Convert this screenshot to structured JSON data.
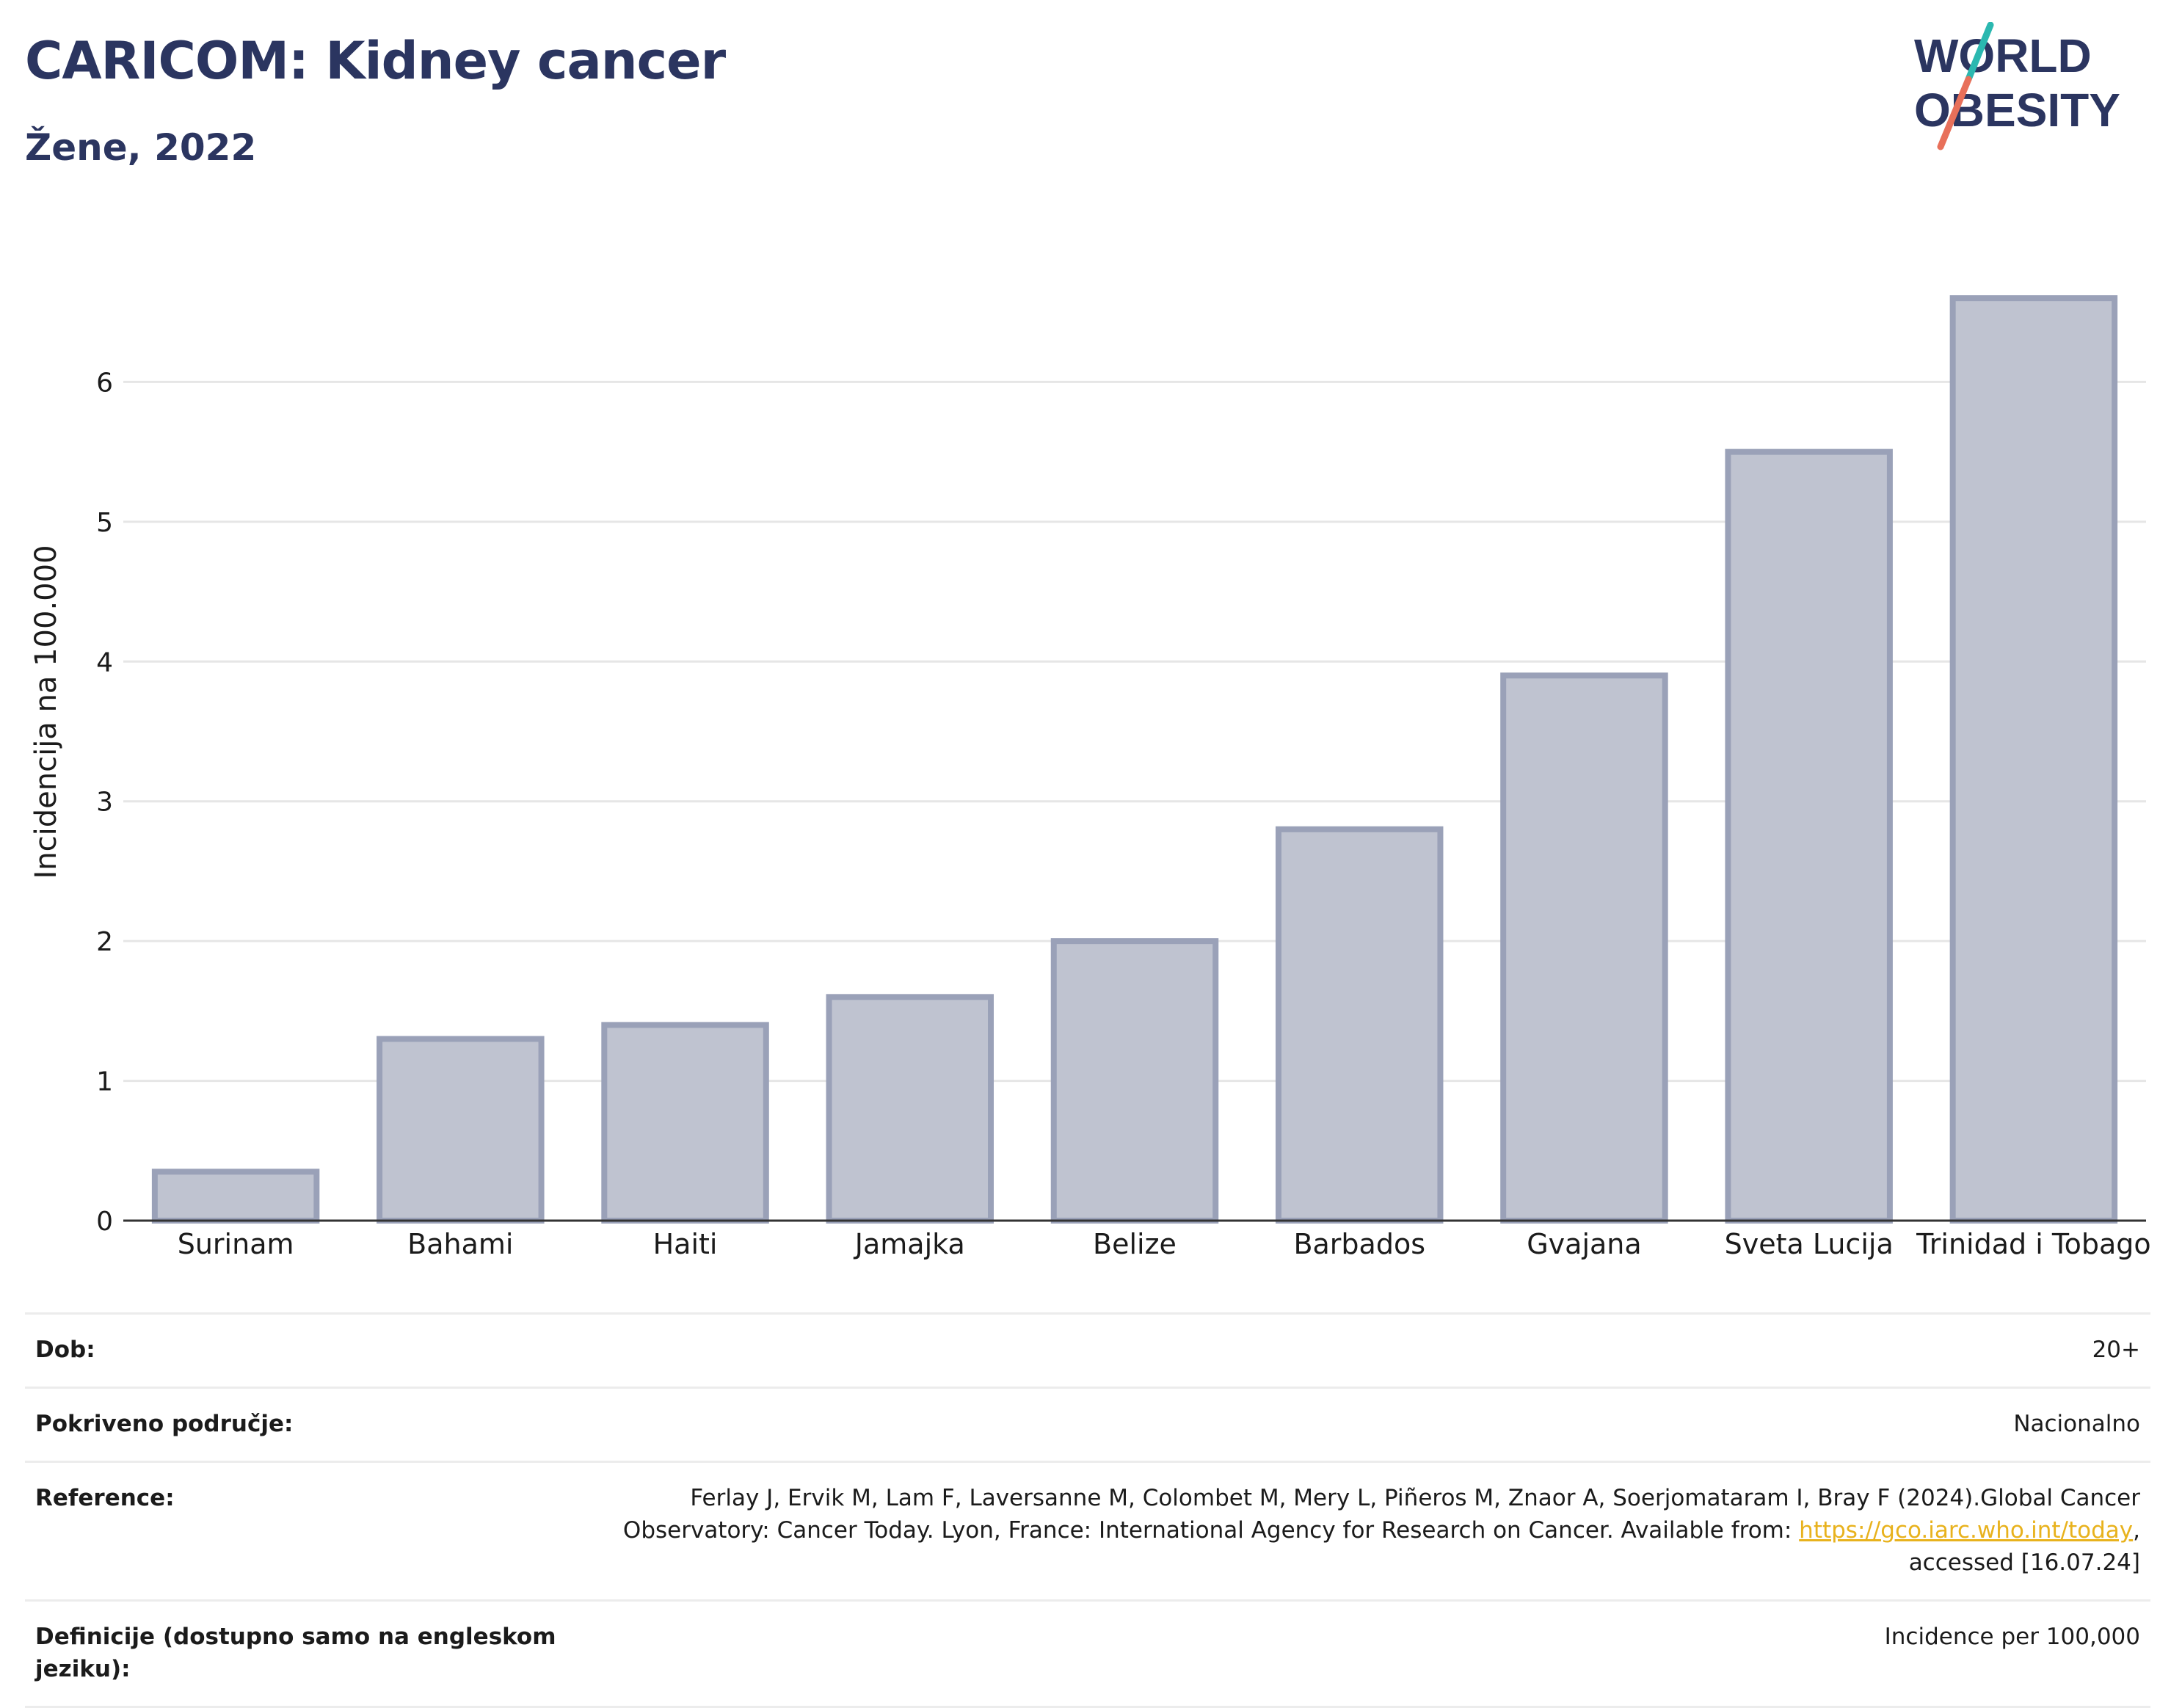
{
  "header": {
    "title": "CARICOM: Kidney cancer",
    "subtitle": "Žene, 2022"
  },
  "logo": {
    "line1": "WORLD",
    "line2": "OBESITY",
    "colors": {
      "text": "#2b3560",
      "slash_top": "#2bb8b0",
      "slash_bottom": "#e8705a"
    }
  },
  "chart_data": {
    "type": "bar",
    "title": "",
    "xlabel": "",
    "ylabel": "Incidencija na 100.000",
    "categories": [
      "Surinam",
      "Bahami",
      "Haiti",
      "Jamajka",
      "Belize",
      "Barbados",
      "Gvajana",
      "Sveta Lucija",
      "Trinidad i Tobago"
    ],
    "values": [
      0.35,
      1.3,
      1.4,
      1.6,
      2.0,
      2.8,
      3.9,
      5.5,
      6.6
    ],
    "ylim": [
      0,
      7.0
    ],
    "yticks": [
      0,
      1,
      2,
      3,
      4,
      5,
      6
    ],
    "grid": true,
    "bar_fill": "#bfc3d0",
    "bar_stroke": "#9aa1b8"
  },
  "meta": {
    "rows": [
      {
        "label": "Dob:",
        "value": "20+"
      },
      {
        "label": "Pokriveno područje:",
        "value": "Nacionalno"
      },
      {
        "label": "Reference:",
        "value_pre": "Ferlay J, Ervik M, Lam F, Laversanne M, Colombet M, Mery L, Piñeros M, Znaor A, Soerjomataram I, Bray F (2024).Global Cancer Observatory: Cancer Today. Lyon, France: International Agency for Research on Cancer. Available from: ",
        "link": "https://gco.iarc.who.int/today",
        "value_post": ", accessed [16.07.24]"
      },
      {
        "label": "Definicije (dostupno samo na engleskom jeziku):",
        "value": "Incidence per 100,000"
      }
    ]
  }
}
